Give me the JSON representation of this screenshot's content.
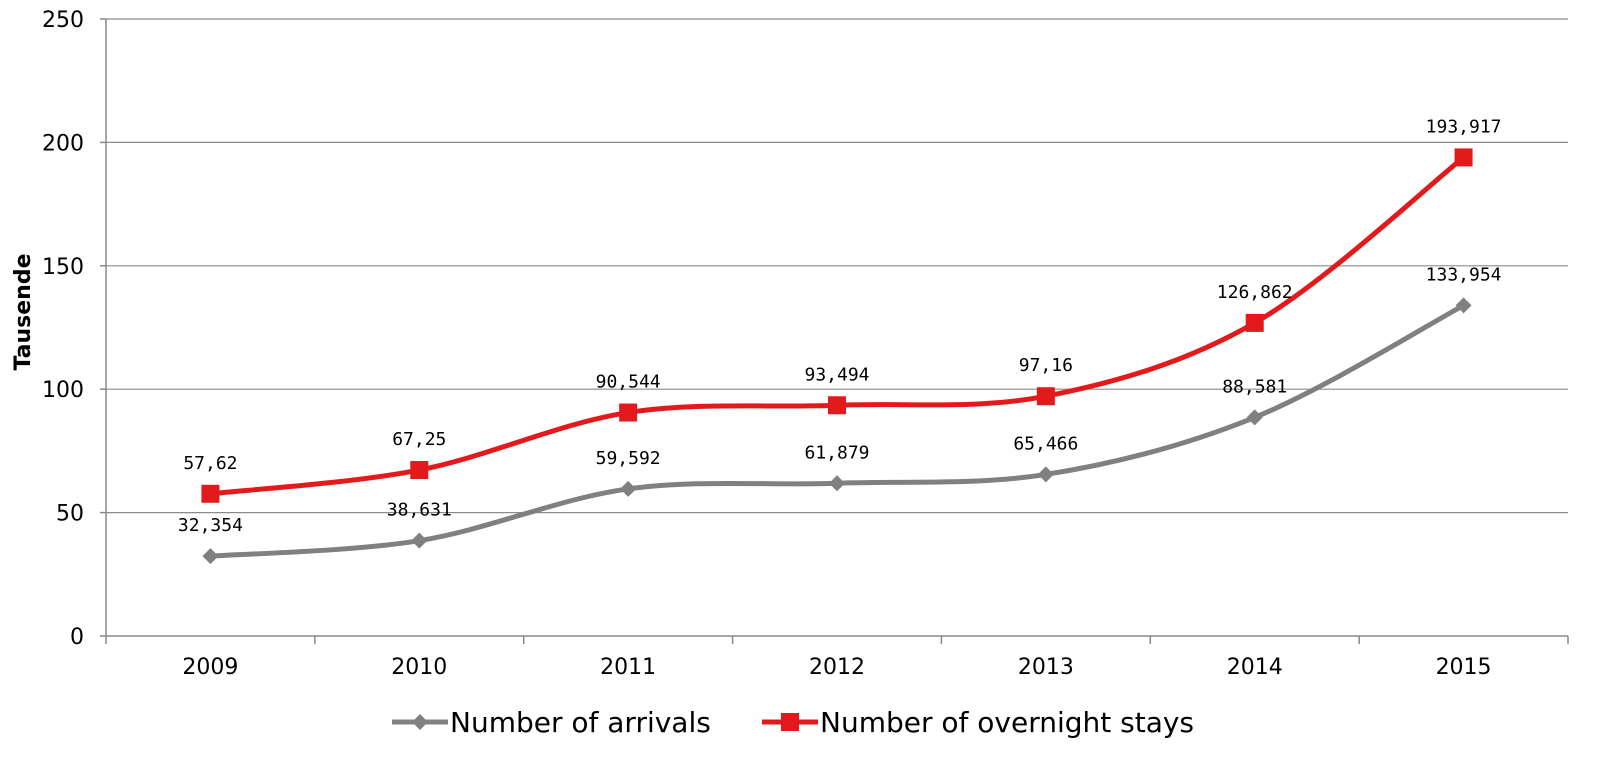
{
  "chart_data": {
    "type": "line",
    "categories": [
      "2009",
      "2010",
      "2011",
      "2012",
      "2013",
      "2014",
      "2015"
    ],
    "series": [
      {
        "name": "Number of arrivals",
        "color": "#808080",
        "marker": "diamond",
        "values": [
          32.354,
          38.631,
          59.592,
          61.879,
          65.466,
          88.581,
          133.954
        ],
        "labels": [
          "32,354",
          "38,631",
          "59,592",
          "61,879",
          "65,466",
          "88,581",
          "133,954"
        ]
      },
      {
        "name": "Number of overnight stays",
        "color": "#e31a1c",
        "marker": "square",
        "values": [
          57.62,
          67.25,
          90.544,
          93.494,
          97.16,
          126.862,
          193.917
        ],
        "labels": [
          "57,62",
          "67,25",
          "90,544",
          "93,494",
          "97,16",
          "126,862",
          "193,917"
        ]
      }
    ],
    "ylabel": "Tausende",
    "xlabel": "",
    "title": "",
    "ylim": [
      0,
      250
    ],
    "yticks": [
      0,
      50,
      100,
      150,
      200,
      250
    ],
    "grid": true,
    "smooth": true,
    "legend_position": "bottom"
  }
}
